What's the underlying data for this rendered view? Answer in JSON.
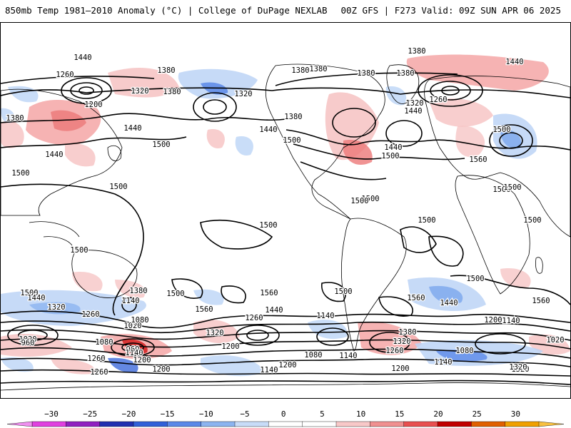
{
  "header": {
    "left_title": "850mb Temp 1981–2010 Anomaly (°C) | College of DuPage NEXLAB",
    "right_title": "00Z GFS | F273 Valid: 09Z SUN APR 06 2025"
  },
  "map": {
    "contour_labels": [
      {
        "text": "1440"
      },
      {
        "text": "1380"
      },
      {
        "text": "1260"
      },
      {
        "text": "1200"
      },
      {
        "text": "1320"
      },
      {
        "text": "1380"
      },
      {
        "text": "1380"
      },
      {
        "text": "1440"
      },
      {
        "text": "1440"
      },
      {
        "text": "1500"
      },
      {
        "text": "1500"
      },
      {
        "text": "1500"
      },
      {
        "text": "1380"
      },
      {
        "text": "1320"
      },
      {
        "text": "1380"
      },
      {
        "text": "1440"
      },
      {
        "text": "1380"
      },
      {
        "text": "1500"
      },
      {
        "text": "1380"
      },
      {
        "text": "1380"
      },
      {
        "text": "1380"
      },
      {
        "text": "1440"
      },
      {
        "text": "1320"
      },
      {
        "text": "1260"
      },
      {
        "text": "1440"
      },
      {
        "text": "1500"
      },
      {
        "text": "1440"
      },
      {
        "text": "1500"
      },
      {
        "text": "1500"
      },
      {
        "text": "1560"
      },
      {
        "text": "1500"
      },
      {
        "text": "1500"
      },
      {
        "text": "1500"
      },
      {
        "text": "1500"
      },
      {
        "text": "1500"
      },
      {
        "text": "1500"
      },
      {
        "text": "1500"
      },
      {
        "text": "1500"
      },
      {
        "text": "1500"
      },
      {
        "text": "1440"
      },
      {
        "text": "1320"
      },
      {
        "text": "1260"
      },
      {
        "text": "1380"
      },
      {
        "text": "1140"
      },
      {
        "text": "1500"
      },
      {
        "text": "1560"
      },
      {
        "text": "1560"
      },
      {
        "text": "1500"
      },
      {
        "text": "1440"
      },
      {
        "text": "1260"
      },
      {
        "text": "1140"
      },
      {
        "text": "1560"
      },
      {
        "text": "1440"
      },
      {
        "text": "1200"
      },
      {
        "text": "1560"
      },
      {
        "text": "1500"
      },
      {
        "text": "1140"
      },
      {
        "text": "1020"
      },
      {
        "text": "1020"
      },
      {
        "text": "960"
      },
      {
        "text": "1080"
      },
      {
        "text": "1080"
      },
      {
        "text": "960"
      },
      {
        "text": "1140"
      },
      {
        "text": "1320"
      },
      {
        "text": "1200"
      },
      {
        "text": "1200"
      },
      {
        "text": "1140"
      },
      {
        "text": "1080"
      },
      {
        "text": "1200"
      },
      {
        "text": "1380"
      },
      {
        "text": "1320"
      },
      {
        "text": "1260"
      },
      {
        "text": "1080"
      },
      {
        "text": "1020"
      },
      {
        "text": "1320"
      },
      {
        "text": "1260"
      },
      {
        "text": "1200"
      },
      {
        "text": "1140"
      },
      {
        "text": "1260"
      },
      {
        "text": "1200"
      },
      {
        "text": "1140"
      },
      {
        "text": "1320"
      }
    ]
  },
  "colorbar": {
    "tick_labels": [
      "−30",
      "−25",
      "−20",
      "−15",
      "−10",
      "−5",
      "0",
      "5",
      "10",
      "15",
      "20",
      "25",
      "30"
    ],
    "segment_colors": [
      "#e040e0",
      "#9020c0",
      "#2030b0",
      "#3060d8",
      "#5a88e8",
      "#8cb4f0",
      "#c8dcf8",
      "#ffffff",
      "#ffffff",
      "#f8c8c8",
      "#f09090",
      "#e85050",
      "#c00000",
      "#e06000",
      "#f0a000"
    ]
  }
}
